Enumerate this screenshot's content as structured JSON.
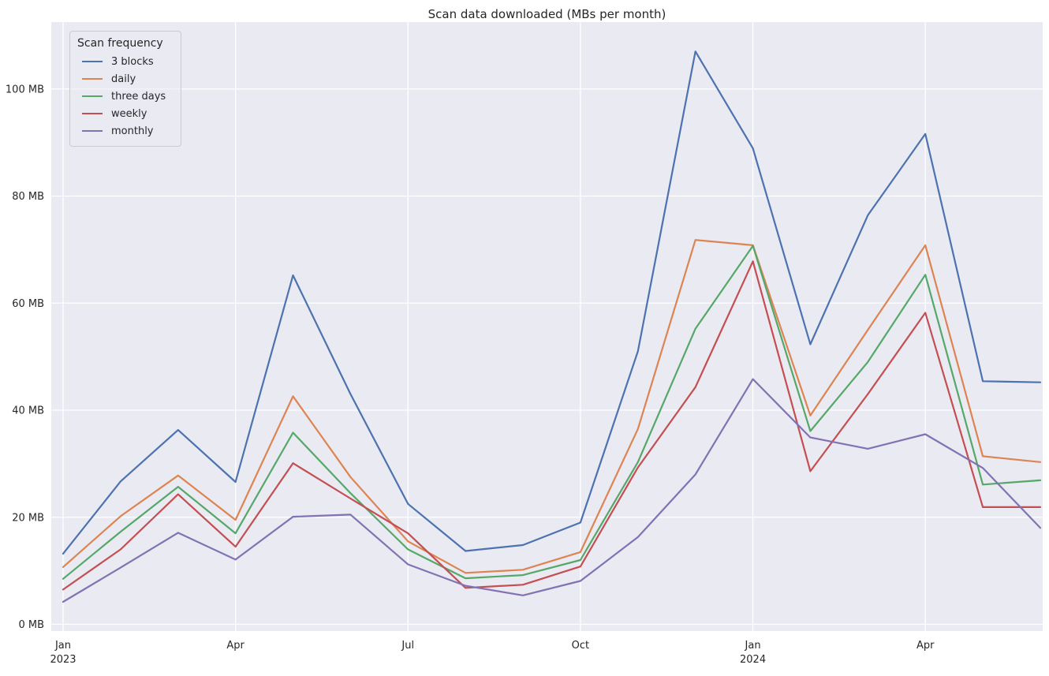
{
  "figure": {
    "title": "Scan data downloaded (MBs per month)"
  },
  "legend": {
    "title": "Scan frequency",
    "position": "upper left"
  },
  "colors": {
    "figure_bg": "#FFFFFF",
    "plot_bg": "#EAEAF2",
    "grid": "#FFFFFF",
    "text": "#262626",
    "series_blue": "#4C72B0",
    "series_orange": "#DD8452",
    "series_green": "#55A868",
    "series_red": "#C44E52",
    "series_purple": "#8172B3"
  },
  "chart_data": {
    "type": "line",
    "title": "Scan data downloaded (MBs per month)",
    "xlabel": "",
    "ylabel": "",
    "grid": true,
    "legend_title": "Scan frequency",
    "legend_position": "upper left",
    "ylim": [
      -1.3,
      112.5
    ],
    "x": [
      "2023-01",
      "2023-02",
      "2023-03",
      "2023-04",
      "2023-05",
      "2023-06",
      "2023-07",
      "2023-08",
      "2023-09",
      "2023-10",
      "2023-11",
      "2023-12",
      "2024-01",
      "2024-02",
      "2024-03",
      "2024-04",
      "2024-05",
      "2024-06"
    ],
    "x_tick_labels": [
      {
        "index": 0,
        "line1": "Jan",
        "line2": "2023"
      },
      {
        "index": 3,
        "line1": "Apr",
        "line2": ""
      },
      {
        "index": 6,
        "line1": "Jul",
        "line2": ""
      },
      {
        "index": 9,
        "line1": "Oct",
        "line2": ""
      },
      {
        "index": 12,
        "line1": "Jan",
        "line2": "2024"
      },
      {
        "index": 15,
        "line1": "Apr",
        "line2": ""
      }
    ],
    "y_ticks": [
      {
        "value": 0,
        "label": "0 MB"
      },
      {
        "value": 20,
        "label": "20 MB"
      },
      {
        "value": 40,
        "label": "40 MB"
      },
      {
        "value": 60,
        "label": "60 MB"
      },
      {
        "value": 80,
        "label": "80 MB"
      },
      {
        "value": 100,
        "label": "100 MB"
      }
    ],
    "series": [
      {
        "name": "3 blocks",
        "color": "#4C72B0",
        "values": [
          13.2,
          26.7,
          36.3,
          26.6,
          65.2,
          43.0,
          22.5,
          13.7,
          14.8,
          19.0,
          51.0,
          107.0,
          88.9,
          52.3,
          76.4,
          91.6,
          45.4,
          45.2
        ]
      },
      {
        "name": "daily",
        "color": "#DD8452",
        "values": [
          10.7,
          20.2,
          27.8,
          19.5,
          42.6,
          27.5,
          15.5,
          9.6,
          10.2,
          13.5,
          36.5,
          71.8,
          70.8,
          39.0,
          55.0,
          70.8,
          31.4,
          30.3
        ]
      },
      {
        "name": "three days",
        "color": "#55A868",
        "values": [
          8.5,
          17.3,
          25.7,
          17.0,
          35.8,
          24.5,
          14.0,
          8.6,
          9.2,
          12.0,
          30.3,
          55.2,
          70.7,
          36.1,
          49.0,
          65.3,
          26.1,
          26.9
        ]
      },
      {
        "name": "weekly",
        "color": "#C44E52",
        "values": [
          6.5,
          14.0,
          24.3,
          14.5,
          30.1,
          23.5,
          17.0,
          6.8,
          7.4,
          10.8,
          29.3,
          44.3,
          67.8,
          28.6,
          43.0,
          58.2,
          21.9,
          21.9
        ]
      },
      {
        "name": "monthly",
        "color": "#8172B3",
        "values": [
          4.2,
          10.6,
          17.1,
          12.1,
          20.1,
          20.5,
          11.2,
          7.2,
          5.4,
          8.1,
          16.3,
          28.0,
          45.8,
          34.9,
          32.8,
          35.5,
          29.2,
          18.0
        ]
      }
    ]
  }
}
